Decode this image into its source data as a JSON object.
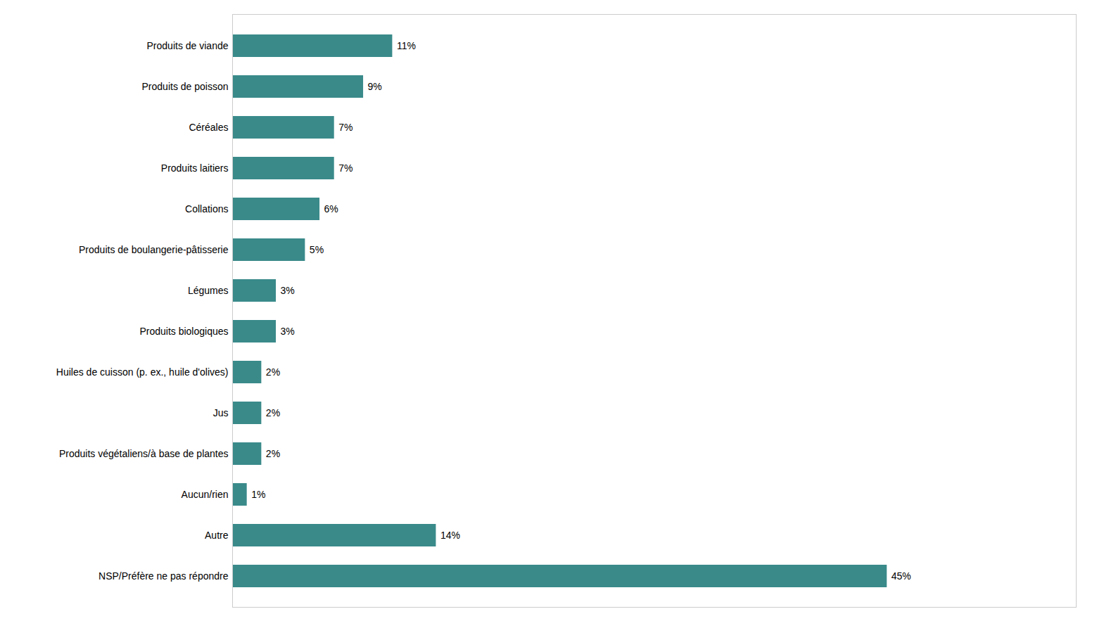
{
  "chart_data": {
    "type": "bar",
    "orientation": "horizontal",
    "categories": [
      "NSP/Préfère ne pas répondre",
      "Autre",
      "Aucun/rien",
      "Produits végétaliens/à base de plantes",
      "Jus",
      "Huiles de cuisson (p. ex., huile d'olives)",
      "Produits biologiques",
      "Légumes",
      "Produits de boulangerie-pâtisserie",
      "Collations",
      "Produits laitiers",
      "Céréales",
      "Produits de poisson",
      "Produits de viande"
    ],
    "values": [
      45,
      14,
      1,
      2,
      2,
      2,
      3,
      3,
      5,
      6,
      7,
      7,
      9,
      11
    ],
    "value_labels": [
      "45%",
      "14%",
      "1%",
      "2%",
      "2%",
      "2%",
      "3%",
      "3%",
      "5%",
      "6%",
      "7%",
      "7%",
      "9%",
      "11%"
    ],
    "data_labels": true,
    "color": "#3a8a8a",
    "xlim": [
      0,
      58
    ],
    "grid": false,
    "tick_labels": "y"
  }
}
